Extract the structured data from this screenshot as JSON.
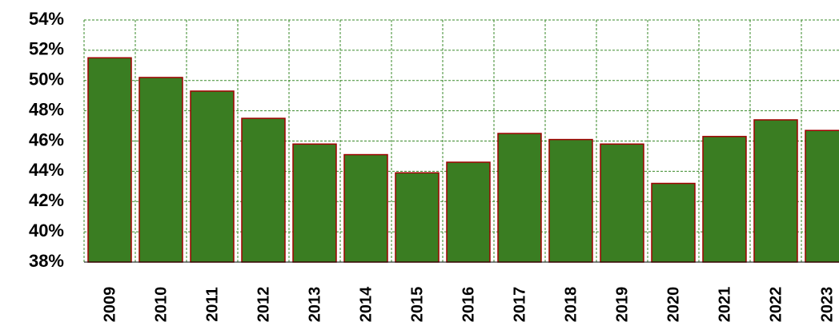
{
  "chart_data": {
    "type": "bar",
    "categories": [
      "2009",
      "2010",
      "2011",
      "2012",
      "2013",
      "2014",
      "2015",
      "2016",
      "2017",
      "2018",
      "2019",
      "2020",
      "2021",
      "2022",
      "2023"
    ],
    "values": [
      51.5,
      50.2,
      49.3,
      47.5,
      45.8,
      45.1,
      43.9,
      44.6,
      46.5,
      46.1,
      45.8,
      43.2,
      46.3,
      47.4,
      46.7
    ],
    "color": "#3a7d22",
    "edge_color": "#a00000",
    "grid_color": "#3a8a2a",
    "ylim": [
      38,
      54
    ],
    "yticks": [
      {
        "value": 38,
        "label": "38%"
      },
      {
        "value": 40,
        "label": "40%"
      },
      {
        "value": 42,
        "label": "42%"
      },
      {
        "value": 44,
        "label": "44%"
      },
      {
        "value": 46,
        "label": "46%"
      },
      {
        "value": 48,
        "label": "48%"
      },
      {
        "value": 50,
        "label": "50%"
      },
      {
        "value": 52,
        "label": "52%"
      },
      {
        "value": 54,
        "label": "54%"
      }
    ],
    "grid": true
  }
}
